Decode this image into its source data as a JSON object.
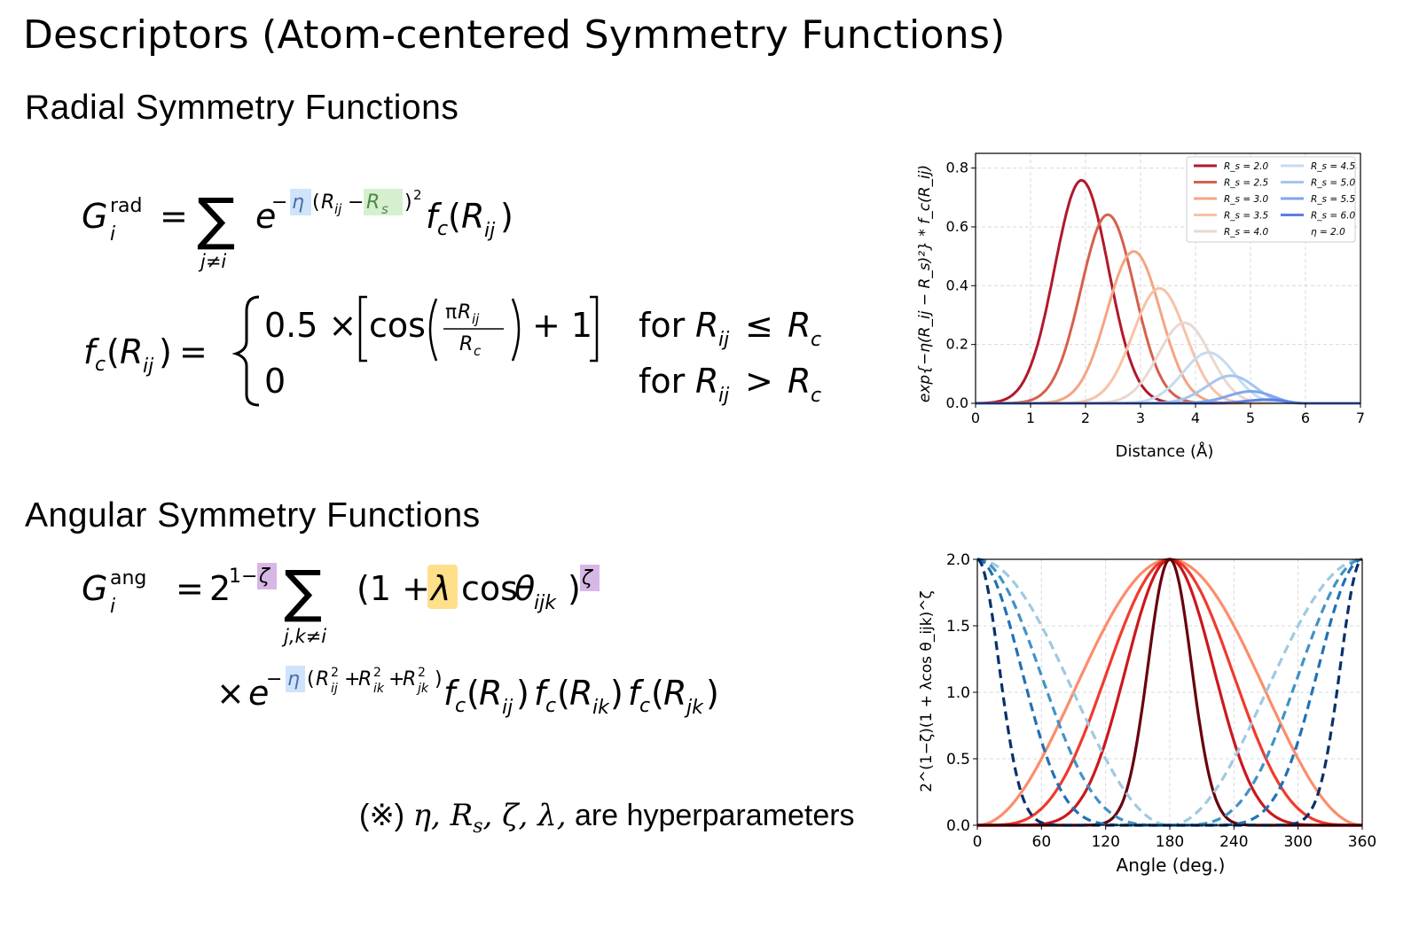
{
  "title": "Descriptors (Atom-centered Symmetry Functions)",
  "radial": {
    "heading": "Radial Symmetry Functions"
  },
  "angular": {
    "heading": "Angular Symmetry Functions"
  },
  "footnote": {
    "prefix": "(※)",
    "symbols": "η, R",
    "sub": "s",
    "rest_symbols": ", ζ, λ,",
    "text": "are hyperparameters"
  },
  "colors": {
    "eta_highlight": "#cfe3fb",
    "rs_highlight": "#d6f0cf",
    "zeta_highlight": "#d7b7e5",
    "lambda_highlight": "#ffe08a"
  },
  "chart_data": [
    {
      "type": "line",
      "xlabel": "Distance (Å)",
      "ylabel": "exp{−η(R_ij − R_s)²} * f_c(R_ij)",
      "xlim": [
        0,
        7
      ],
      "ylim": [
        0,
        0.85
      ],
      "xticks": [
        "0",
        "1",
        "2",
        "3",
        "4",
        "5",
        "6",
        "7"
      ],
      "yticks": [
        "0.0",
        "0.2",
        "0.4",
        "0.6",
        "0.8"
      ],
      "grid": true,
      "legend_position": "top-right",
      "eta": 2.0,
      "rc": 6.0,
      "series": [
        {
          "name": "Rs = 2.0",
          "rs": 2.0,
          "color": "#b2182b"
        },
        {
          "name": "Rs = 2.5",
          "rs": 2.5,
          "color": "#d6604d"
        },
        {
          "name": "Rs = 3.0",
          "rs": 3.0,
          "color": "#f4a582"
        },
        {
          "name": "Rs = 3.5",
          "rs": 3.5,
          "color": "#f7c2a7"
        },
        {
          "name": "Rs = 4.0",
          "rs": 4.0,
          "color": "#e8d8d1"
        },
        {
          "name": "Rs = 4.5",
          "rs": 4.5,
          "color": "#c6dbef"
        },
        {
          "name": "Rs = 5.0",
          "rs": 5.0,
          "color": "#a6c6f0"
        },
        {
          "name": "Rs = 5.5",
          "rs": 5.5,
          "color": "#7ea6ee"
        },
        {
          "name": "Rs = 6.0",
          "rs": 6.0,
          "color": "#5b7fe3"
        }
      ],
      "legend_labels": [
        "R_s = 2.0",
        "R_s = 2.5",
        "R_s = 3.0",
        "R_s = 3.5",
        "R_s = 4.0",
        "R_s = 4.5",
        "R_s = 5.0",
        "R_s = 5.5",
        "R_s = 6.0",
        "η = 2.0"
      ]
    },
    {
      "type": "line",
      "xlabel": "Angle (deg.)",
      "ylabel": "2^(1−ζ)(1 + λcos θ_ijk)^ζ",
      "xlim": [
        0,
        360
      ],
      "ylim": [
        0,
        2.0
      ],
      "xticks": [
        "0",
        "60",
        "120",
        "180",
        "240",
        "300",
        "360"
      ],
      "yticks": [
        "0.0",
        "0.5",
        "1.0",
        "1.5",
        "2.0"
      ],
      "grid": true,
      "series": [
        {
          "lambda": -1,
          "zeta": 1,
          "color": "#fc8d6b",
          "dash": false
        },
        {
          "lambda": -1,
          "zeta": 2,
          "color": "#ef3b2c",
          "dash": false
        },
        {
          "lambda": -1,
          "zeta": 4,
          "color": "#cb181d",
          "dash": false
        },
        {
          "lambda": -1,
          "zeta": 16,
          "color": "#67000d",
          "dash": false
        },
        {
          "lambda": 1,
          "zeta": 1,
          "color": "#9ecae1",
          "dash": true
        },
        {
          "lambda": 1,
          "zeta": 2,
          "color": "#4292c6",
          "dash": true
        },
        {
          "lambda": 1,
          "zeta": 4,
          "color": "#2171b5",
          "dash": true
        },
        {
          "lambda": 1,
          "zeta": 16,
          "color": "#08306b",
          "dash": true
        }
      ]
    }
  ]
}
